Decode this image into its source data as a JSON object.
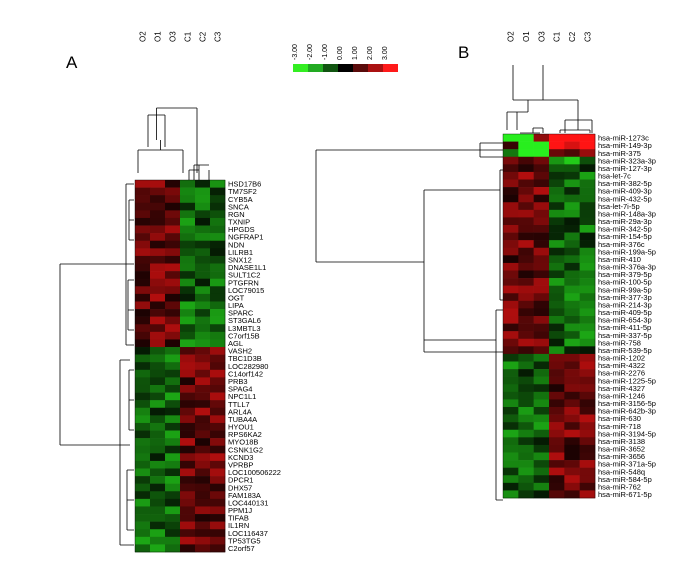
{
  "color_scale": {
    "ticks": [
      "-3.00",
      "-2.00",
      "-1.00",
      "0.00",
      "1.00",
      "2.00",
      "3.00"
    ],
    "colors": [
      "#33ee22",
      "#22aa22",
      "#115511",
      "#000000",
      "#5a0b0b",
      "#aa1111",
      "#ff1a1a"
    ]
  },
  "panels": [
    {
      "label": "A",
      "columns": [
        "O2",
        "O1",
        "O3",
        "C1",
        "C2",
        "C3"
      ],
      "rows": [
        "HSD17B6",
        "TM7SF2",
        "CYB5A",
        "SNCA",
        "RGN",
        "TXNIP",
        "HPGDS",
        "NGFRAP1",
        "NDN",
        "LILRB1",
        "SNX12",
        "DNASE1L1",
        "SULT1C2",
        "PTGFRN",
        "LOC79015",
        "OGT",
        "LIPA",
        "SPARC",
        "ST3GAL6",
        "L3MBTL3",
        "C7orf15B",
        "AGL",
        "VASH2",
        "TBC1D3B",
        "LOC282980",
        "C14orf142",
        "PRB3",
        "SPAG4",
        "NPC1L1",
        "TTLL7",
        "ARL4A",
        "TUBA4A",
        "HYOU1",
        "RPS6KA2",
        "MYO18B",
        "CSNK1G2",
        "KCND3",
        "VPRBP",
        "LOC100506222",
        "DPCR1",
        "DHX57",
        "FAM183A",
        "LOC440131",
        "PPM1J",
        "TIFAB",
        "IL1RN",
        "LOC116437",
        "TP53TG5",
        "C2orf57"
      ]
    },
    {
      "label": "B",
      "columns": [
        "O2",
        "O1",
        "O3",
        "C1",
        "C2",
        "C3"
      ],
      "rows": [
        "hsa-miR-1273c",
        "hsa-miR-149-3p",
        "hsa-miR-375",
        "hsa-miR-323a-3p",
        "hsa-miR-127-3p",
        "hsa-let-7c",
        "hsa-miR-382-5p",
        "hsa-miR-409-3p",
        "hsa-miR-432-5p",
        "hsa-let-7i-5p",
        "hsa-miR-148a-3p",
        "hsa-miR-29a-3p",
        "hsa-miR-342-5p",
        "hsa-miR-154-5p",
        "hsa-miR-376c",
        "hsa-miR-199a-5p",
        "hsa-miR-410",
        "hsa-miR-376a-3p",
        "hsa-miR-379-5p",
        "hsa-miR-100-5p",
        "hsa-miR-99a-5p",
        "hsa-miR-377-3p",
        "hsa-miR-214-3p",
        "hsa-miR-409-5p",
        "hsa-miR-654-3p",
        "hsa-miR-411-5p",
        "hsa-miR-337-5p",
        "hsa-miR-758",
        "hsa-miR-539-5p",
        "hsa-miR-1202",
        "hsa-miR-4322",
        "hsa-miR-2276",
        "hsa-miR-1225-5p",
        "hsa-miR-4327",
        "hsa-miR-1246",
        "hsa-miR-3156-5p",
        "hsa-miR-642b-3p",
        "hsa-miR-630",
        "hsa-miR-718",
        "hsa-miR-3194-5p",
        "hsa-miR-3138",
        "hsa-miR-3652",
        "hsa-miR-3656",
        "hsa-miR-371a-5p",
        "hsa-miR-548q",
        "hsa-miR-584-5p",
        "hsa-miR-762",
        "hsa-miR-671-5p"
      ]
    }
  ]
}
